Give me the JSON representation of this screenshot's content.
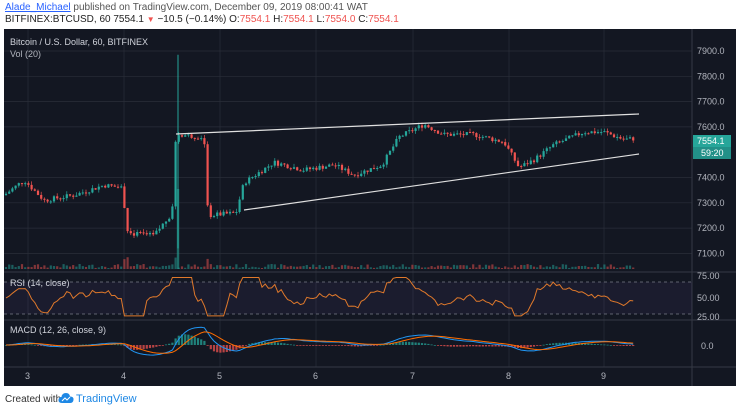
{
  "header": {
    "author": "Alade_Michael",
    "published_text": " published on TradingView.com, December 09, 2019 08:00:41 WAT",
    "symbol": "BITFINEX:BTCUSD, 60",
    "last": "7554.1",
    "change_arrow": "▼",
    "change": "−10.5 (−0.14%)",
    "o_label": "O:",
    "o_value": "7554.1",
    "h_label": "H:",
    "h_value": "7554.1",
    "l_label": "L:",
    "l_value": "7554.0",
    "c_label": "C:",
    "c_value": "7554.1"
  },
  "main_pane": {
    "title": "Bitcoin / U.S. Dollar, 60, BITFINEX",
    "vol_label": "Vol (20)",
    "price_ticks": [
      "7900.0",
      "7800.0",
      "7700.0",
      "7600.0",
      "7400.0",
      "7300.0",
      "7200.0",
      "7100.0"
    ],
    "price_tick_values": [
      7900,
      7800,
      7700,
      7600,
      7400,
      7300,
      7200,
      7100
    ],
    "last_price_label": "7554.1",
    "countdown_label": "59:20"
  },
  "rsi_pane": {
    "label": "RSI (14, close)",
    "ticks": [
      "75.00",
      "50.00",
      "25.00"
    ]
  },
  "macd_pane": {
    "label": "MACD (12, 26, close, 9)",
    "ticks": [
      "0.0"
    ]
  },
  "x_axis": {
    "labels": [
      "3",
      "4",
      "5",
      "6",
      "7",
      "8",
      "9"
    ]
  },
  "footer": {
    "created_with": "Created with",
    "brand": "TradingView"
  },
  "colors": {
    "bg": "#131722",
    "up": "#26a69a",
    "down": "#ef5350",
    "grid": "#2a2e39",
    "axis_text": "#b2b5be",
    "trendline": "#e0e0e0",
    "rsi_line": "#e0792b",
    "macd_line": "#2196f3",
    "signal_line": "#ff6d00"
  },
  "chart_data": {
    "type": "candlestick",
    "series": [
      {
        "name": "price_close_approx",
        "x": [
          "3",
          "4",
          "4.5",
          "5",
          "5.5",
          "6",
          "6.5",
          "7",
          "7.5",
          "8",
          "8.5",
          "9",
          "9.3"
        ],
        "values": [
          7330,
          7370,
          7560,
          7260,
          7390,
          7430,
          7420,
          7600,
          7560,
          7450,
          7560,
          7570,
          7554
        ]
      }
    ],
    "ylim": [
      7050,
      7950
    ],
    "grid": true
  }
}
